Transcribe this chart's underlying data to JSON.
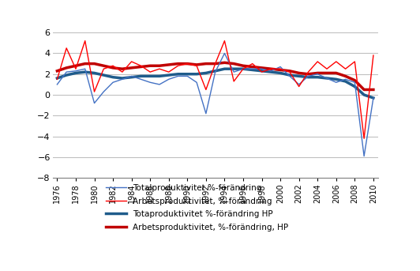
{
  "years": [
    1976,
    1977,
    1978,
    1979,
    1980,
    1981,
    1982,
    1983,
    1984,
    1985,
    1986,
    1987,
    1988,
    1989,
    1990,
    1991,
    1992,
    1993,
    1994,
    1995,
    1996,
    1997,
    1998,
    1999,
    2000,
    2001,
    2002,
    2003,
    2004,
    2005,
    2006,
    2007,
    2008,
    2009,
    2010
  ],
  "totalproduktivitet": [
    1.0,
    2.2,
    2.3,
    2.5,
    -0.8,
    0.3,
    1.2,
    1.5,
    1.8,
    1.5,
    1.2,
    1.0,
    1.5,
    1.8,
    1.8,
    1.2,
    -1.8,
    2.2,
    4.0,
    2.2,
    2.5,
    2.5,
    2.5,
    2.3,
    2.7,
    1.8,
    1.0,
    1.8,
    2.0,
    1.6,
    1.2,
    1.5,
    1.2,
    -5.9,
    -0.3
  ],
  "arbetsproduktivitet": [
    1.5,
    4.5,
    2.5,
    5.2,
    0.3,
    2.5,
    2.8,
    2.2,
    3.2,
    2.8,
    2.2,
    2.5,
    2.2,
    2.8,
    3.0,
    2.8,
    0.5,
    3.0,
    5.2,
    1.3,
    2.5,
    3.0,
    2.2,
    2.5,
    2.5,
    2.2,
    0.8,
    2.2,
    3.2,
    2.5,
    3.2,
    2.5,
    3.2,
    -4.2,
    3.8
  ],
  "totalproduktivitet_hp": [
    1.6,
    1.9,
    2.1,
    2.2,
    2.1,
    1.9,
    1.7,
    1.6,
    1.7,
    1.8,
    1.8,
    1.8,
    1.9,
    2.0,
    2.0,
    2.0,
    2.1,
    2.3,
    2.5,
    2.5,
    2.5,
    2.4,
    2.3,
    2.2,
    2.1,
    1.9,
    1.8,
    1.7,
    1.7,
    1.6,
    1.5,
    1.3,
    0.8,
    0.0,
    -0.3
  ],
  "arbetsproduktivitet_hp": [
    2.3,
    2.6,
    2.8,
    3.0,
    3.0,
    2.8,
    2.6,
    2.5,
    2.6,
    2.7,
    2.8,
    2.8,
    2.9,
    3.0,
    3.0,
    2.9,
    3.0,
    3.0,
    3.1,
    3.0,
    2.8,
    2.7,
    2.6,
    2.5,
    2.4,
    2.3,
    2.1,
    2.0,
    2.1,
    2.1,
    2.1,
    1.8,
    1.4,
    0.5,
    0.5
  ],
  "color_total": "#4472C4",
  "color_arbets": "#FF0000",
  "color_total_hp": "#1F5C8B",
  "color_arbets_hp": "#C00000",
  "ylim": [
    -8,
    6
  ],
  "yticks": [
    -8,
    -6,
    -4,
    -2,
    0,
    2,
    4,
    6
  ],
  "legend_labels": [
    "Totalproduktivitet %-förändring",
    "Arbetsproduktivitet, %-förändring",
    "Totaproduktivitet %-förändring HP",
    "Arbetsproduktivitet, %-förändring, HP"
  ],
  "xtick_years": [
    1976,
    1978,
    1980,
    1982,
    1984,
    1986,
    1988,
    1990,
    1992,
    1994,
    1996,
    1998,
    2000,
    2002,
    2004,
    2006,
    2008,
    2010
  ],
  "background_color": "#FFFFFF",
  "grid_color": "#C0C0C0",
  "figsize": [
    5.32,
    3.43
  ],
  "dpi": 100
}
